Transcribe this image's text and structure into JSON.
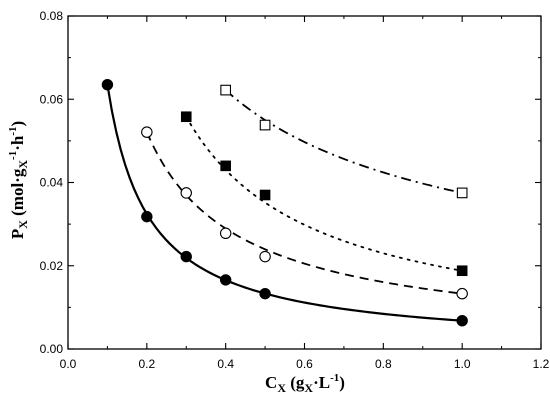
{
  "chart_data": {
    "type": "scatter",
    "xlabel": {
      "main": "C",
      "sub": "X",
      "rest1": " (g",
      "sub2": "X",
      "rest2": "·L",
      "sup": "-1",
      "rest3": ")"
    },
    "ylabel": {
      "main": "P",
      "sub": "X",
      "rest1": " (mol·g",
      "sub2": "X",
      "sup1": "-1",
      "rest2": "·h",
      "sup2": "-1",
      "rest3": ")"
    },
    "xlim": [
      0.0,
      1.2
    ],
    "ylim": [
      0.0,
      0.08
    ],
    "xticks": [
      "0.0",
      "0.2",
      "0.4",
      "0.6",
      "0.8",
      "1.0",
      "1.2"
    ],
    "yticks": [
      "0.00",
      "0.02",
      "0.04",
      "0.06",
      "0.08"
    ],
    "xtick_values": [
      0.0,
      0.2,
      0.4,
      0.6,
      0.8,
      1.0,
      1.2
    ],
    "ytick_values": [
      0.0,
      0.02,
      0.04,
      0.06,
      0.08
    ],
    "grid": false,
    "series": [
      {
        "marker": "filled-circle",
        "line": "solid",
        "color": "#000000",
        "points": [
          {
            "x": 0.1,
            "y": 0.0635
          },
          {
            "x": 0.2,
            "y": 0.0318
          },
          {
            "x": 0.3,
            "y": 0.0222
          },
          {
            "x": 0.4,
            "y": 0.0166
          },
          {
            "x": 0.5,
            "y": 0.0133
          },
          {
            "x": 1.0,
            "y": 0.0068
          }
        ]
      },
      {
        "marker": "open-circle",
        "line": "dashed",
        "color": "#000000",
        "points": [
          {
            "x": 0.2,
            "y": 0.0521
          },
          {
            "x": 0.3,
            "y": 0.0375
          },
          {
            "x": 0.4,
            "y": 0.0278
          },
          {
            "x": 0.5,
            "y": 0.0222
          },
          {
            "x": 1.0,
            "y": 0.0133
          }
        ]
      },
      {
        "marker": "filled-square",
        "line": "dotted",
        "color": "#000000",
        "points": [
          {
            "x": 0.3,
            "y": 0.0558
          },
          {
            "x": 0.4,
            "y": 0.044
          },
          {
            "x": 0.5,
            "y": 0.037
          },
          {
            "x": 1.0,
            "y": 0.0188
          }
        ]
      },
      {
        "marker": "open-square",
        "line": "dash-dot",
        "color": "#000000",
        "points": [
          {
            "x": 0.4,
            "y": 0.0622
          },
          {
            "x": 0.5,
            "y": 0.0538
          },
          {
            "x": 1.0,
            "y": 0.0375
          }
        ]
      }
    ]
  }
}
